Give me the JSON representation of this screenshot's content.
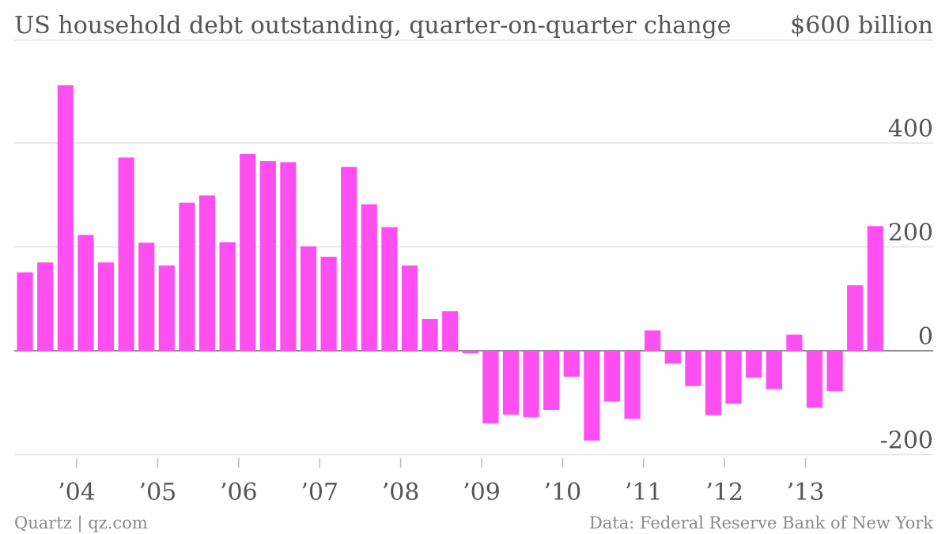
{
  "chart_data": {
    "type": "bar",
    "title": "US household debt outstanding, quarter-on-quarter change",
    "unit_label": "$600 billion",
    "y_ticks": [
      {
        "value": 600,
        "label": "$600 billion"
      },
      {
        "value": 400,
        "label": "400"
      },
      {
        "value": 200,
        "label": "200"
      },
      {
        "value": 0,
        "label": "0"
      },
      {
        "value": -200,
        "label": "-200"
      }
    ],
    "ylim": [
      -200,
      600
    ],
    "x_ticks": [
      "’04",
      "’05",
      "’06",
      "’07",
      "’08",
      "’09",
      "’10",
      "’11",
      "’12",
      "’13"
    ],
    "color": "#ff4ff0",
    "grid": true,
    "values": [
      151,
      170,
      511,
      223,
      170,
      372,
      208,
      164,
      285,
      299,
      209,
      379,
      365,
      363,
      201,
      181,
      354,
      282,
      238,
      164,
      61,
      76,
      -5,
      -140,
      -123,
      -128,
      -114,
      -50,
      -173,
      -98,
      -131,
      39,
      -25,
      -68,
      -124,
      -102,
      -52,
      -74,
      31,
      -110,
      -78,
      126,
      240
    ]
  },
  "source": "Data: Federal Reserve Bank of New York",
  "credit": "Quartz | qz.com"
}
